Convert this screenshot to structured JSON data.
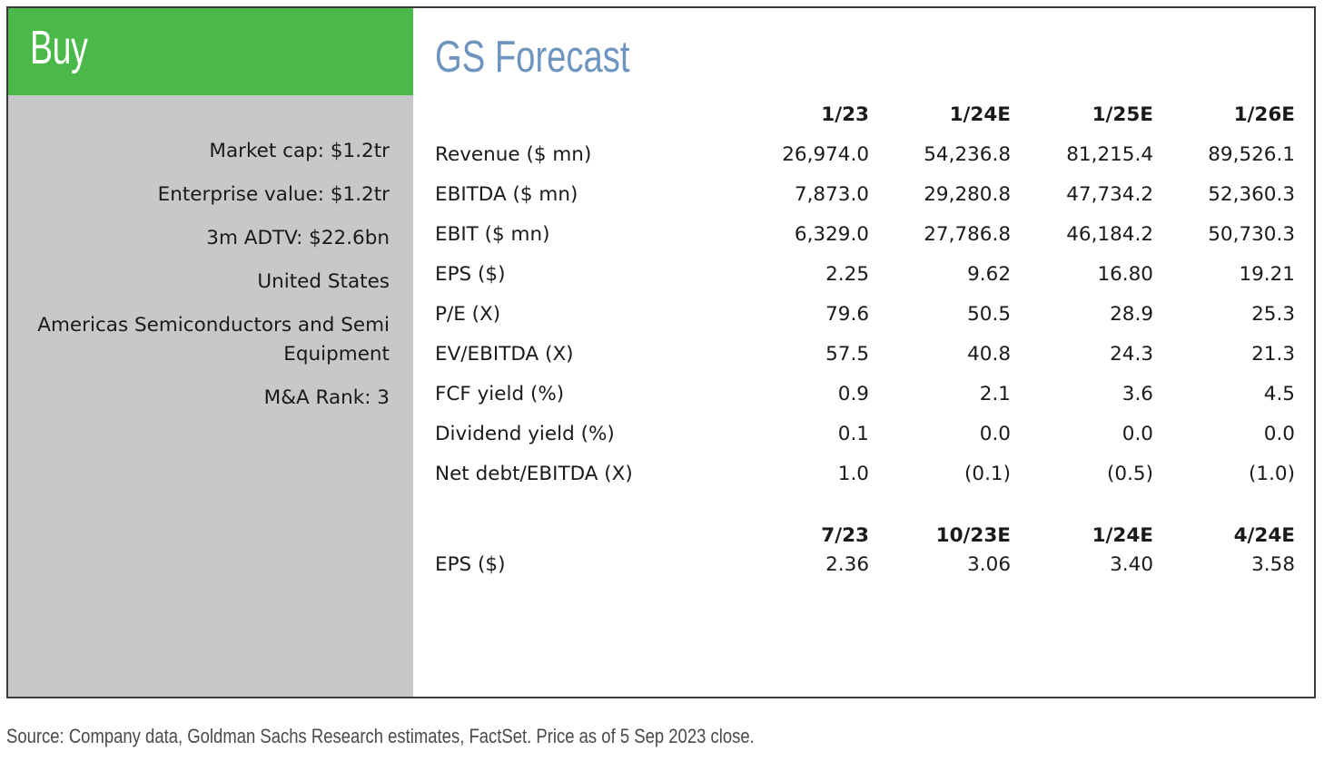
{
  "rating": {
    "label": "Buy",
    "color": "#4ab94a"
  },
  "company_info": [
    "Market cap: $1.2tr",
    "Enterprise value: $1.2tr",
    "3m ADTV: $22.6bn",
    "United States",
    "Americas Semiconductors and Semi Equipment",
    "M&A Rank: 3"
  ],
  "forecast": {
    "title": "GS Forecast",
    "title_color": "#6e95c0",
    "annual_headers": [
      "1/23",
      "1/24E",
      "1/25E",
      "1/26E"
    ],
    "annual_rows": [
      {
        "label": "Revenue ($ mn)",
        "values": [
          "26,974.0",
          "54,236.8",
          "81,215.4",
          "89,526.1"
        ]
      },
      {
        "label": "EBITDA ($ mn)",
        "values": [
          "7,873.0",
          "29,280.8",
          "47,734.2",
          "52,360.3"
        ]
      },
      {
        "label": "EBIT ($ mn)",
        "values": [
          "6,329.0",
          "27,786.8",
          "46,184.2",
          "50,730.3"
        ]
      },
      {
        "label": "EPS ($)",
        "values": [
          "2.25",
          "9.62",
          "16.80",
          "19.21"
        ]
      },
      {
        "label": "P/E (X)",
        "values": [
          "79.6",
          "50.5",
          "28.9",
          "25.3"
        ]
      },
      {
        "label": "EV/EBITDA (X)",
        "values": [
          "57.5",
          "40.8",
          "24.3",
          "21.3"
        ]
      },
      {
        "label": "FCF yield (%)",
        "values": [
          "0.9",
          "2.1",
          "3.6",
          "4.5"
        ]
      },
      {
        "label": "Dividend yield (%)",
        "values": [
          "0.1",
          "0.0",
          "0.0",
          "0.0"
        ]
      },
      {
        "label": "Net debt/EBITDA (X)",
        "values": [
          "1.0",
          "(0.1)",
          "(0.5)",
          "(1.0)"
        ]
      }
    ],
    "quarterly_headers": [
      "7/23",
      "10/23E",
      "1/24E",
      "4/24E"
    ],
    "quarterly_rows": [
      {
        "label": "EPS ($)",
        "values": [
          "2.36",
          "3.06",
          "3.40",
          "3.58"
        ]
      }
    ]
  },
  "source_note": "Source: Company data, Goldman Sachs Research estimates, FactSet. Price as of 5 Sep 2023 close."
}
